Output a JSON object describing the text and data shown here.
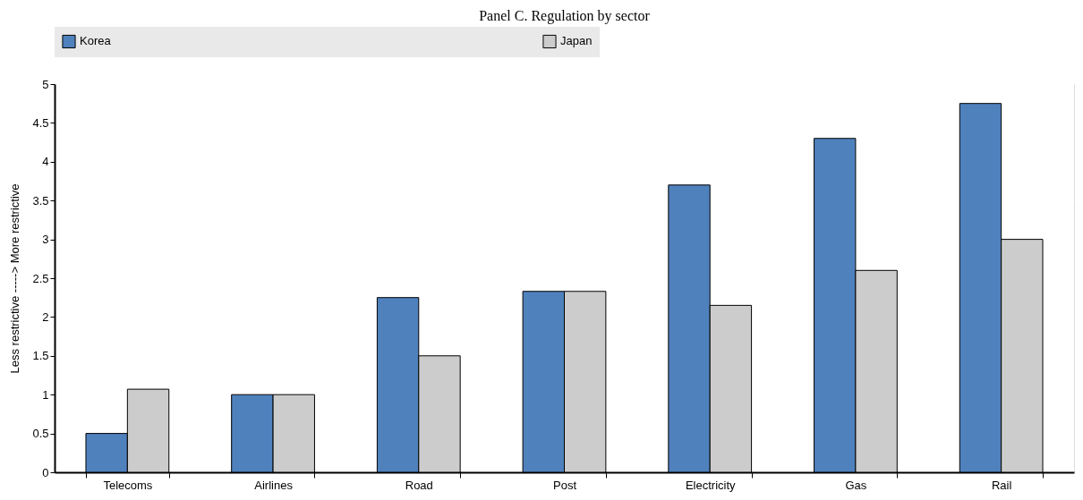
{
  "chart_data": {
    "type": "bar",
    "title": "Panel C. Regulation by sector",
    "ylabel": "Less restrictive -----> More restrictive",
    "categories": [
      "Telecoms",
      "Airlines",
      "Road",
      "Post",
      "Electricity",
      "Gas",
      "Rail"
    ],
    "series": [
      {
        "name": "Korea",
        "color": "#4f81bd",
        "values": [
          0.5,
          1.0,
          2.25,
          2.33,
          3.7,
          4.3,
          4.75
        ]
      },
      {
        "name": "Japan",
        "color": "#cccccc",
        "values": [
          1.07,
          1.0,
          1.5,
          2.33,
          2.15,
          2.6,
          3.0
        ]
      }
    ],
    "ylim": [
      0,
      5
    ],
    "yticks": [
      0,
      0.5,
      1,
      1.5,
      2,
      2.5,
      3,
      3.5,
      4,
      4.5,
      5
    ],
    "grid": true,
    "legend": "top"
  }
}
